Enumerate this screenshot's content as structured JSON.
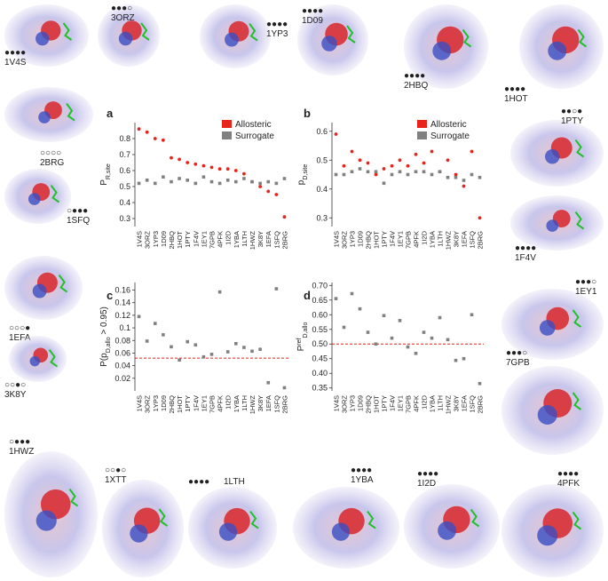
{
  "chart_data": [
    {
      "type": "scatter",
      "panel": "a",
      "ylabel": [
        {
          "text": "P"
        },
        {
          "text": "R,site",
          "sub": true
        }
      ],
      "categories": [
        "1V4S",
        "3ORZ",
        "1YP3",
        "1D09",
        "2HBQ",
        "1HOT",
        "1PTY",
        "1F4V",
        "1EY1",
        "7GPB",
        "4PFK",
        "1I2D",
        "1YBA",
        "1LTH",
        "1HWZ",
        "3K8Y",
        "1EFA",
        "1SFQ",
        "2BRG"
      ],
      "series": [
        {
          "name": "Allosteric",
          "color": "#e8231c",
          "values": [
            0.86,
            0.84,
            0.8,
            0.79,
            0.68,
            0.67,
            0.65,
            0.64,
            0.63,
            0.62,
            0.61,
            0.61,
            0.6,
            0.58,
            0.53,
            0.5,
            0.47,
            0.45,
            0.31
          ]
        },
        {
          "name": "Surrogate",
          "color": "#808080",
          "values": [
            0.52,
            0.54,
            0.52,
            0.56,
            0.53,
            0.55,
            0.54,
            0.52,
            0.56,
            0.53,
            0.52,
            0.54,
            0.53,
            0.55,
            0.53,
            0.52,
            0.53,
            0.52,
            0.55
          ]
        }
      ],
      "ylim": [
        0.25,
        0.9
      ],
      "yticks": [
        0.3,
        0.4,
        0.5,
        0.6,
        0.7,
        0.8
      ]
    },
    {
      "type": "scatter",
      "panel": "b",
      "ylabel": [
        {
          "text": "p"
        },
        {
          "text": "D,site",
          "sub": true
        }
      ],
      "categories": [
        "1V4S",
        "3ORZ",
        "1YP3",
        "1D09",
        "2HBQ",
        "1HOT",
        "1PTY",
        "1F4V",
        "1EY1",
        "7GPB",
        "4PFK",
        "1I2D",
        "1YBA",
        "1LTH",
        "1HWZ",
        "3K8Y",
        "1EFA",
        "1SFQ",
        "2BRG"
      ],
      "series": [
        {
          "name": "Allosteric",
          "color": "#e8231c",
          "values": [
            0.59,
            0.48,
            0.53,
            0.5,
            0.49,
            0.45,
            0.47,
            0.48,
            0.5,
            0.48,
            0.52,
            0.49,
            0.53,
            0.46,
            0.5,
            0.45,
            0.41,
            0.53,
            0.3
          ]
        },
        {
          "name": "Surrogate",
          "color": "#808080",
          "values": [
            0.45,
            0.45,
            0.46,
            0.47,
            0.46,
            0.46,
            0.42,
            0.45,
            0.46,
            0.45,
            0.46,
            0.46,
            0.45,
            0.46,
            0.44,
            0.44,
            0.43,
            0.45,
            0.44
          ]
        }
      ],
      "ylim": [
        0.27,
        0.63
      ],
      "yticks": [
        0.3,
        0.4,
        0.5,
        0.6
      ]
    },
    {
      "type": "scatter",
      "panel": "c",
      "ylabel": [
        {
          "text": "P(p"
        },
        {
          "text": "D,allo",
          "sub": true
        },
        {
          "text": " > 0.95)"
        }
      ],
      "categories": [
        "1V4S",
        "3ORZ",
        "1YP3",
        "1D09",
        "2HBQ",
        "1HOT",
        "1PTY",
        "1F4V",
        "1EY1",
        "7GPB",
        "4PFK",
        "1I2D",
        "1YBA",
        "1LTH",
        "1HWZ",
        "3K8Y",
        "1EFA",
        "1SFQ",
        "2BRG"
      ],
      "values": [
        0.118,
        0.079,
        0.107,
        0.089,
        0.07,
        0.049,
        0.078,
        0.073,
        0.054,
        0.058,
        0.157,
        0.062,
        0.075,
        0.069,
        0.063,
        0.066,
        0.013,
        0.162,
        0.005
      ],
      "color": "#808080",
      "threshold": 0.052,
      "threshold_color": "#e8231c",
      "ylim": [
        0.0,
        0.172
      ],
      "yticks": [
        0.02,
        0.04,
        0.06,
        0.08,
        0.1,
        0.12,
        0.14,
        0.16
      ]
    },
    {
      "type": "scatter",
      "panel": "d",
      "ylabel": [
        {
          "text": "P"
        },
        {
          "text": "ref",
          "sup": true
        },
        {
          "text": "D,allo",
          "sub": true
        }
      ],
      "categories": [
        "1V4S",
        "3ORZ",
        "1YP3",
        "1D09",
        "2HBQ",
        "1HOT",
        "1PTY",
        "1F4V",
        "1EY1",
        "7GPB",
        "4PFK",
        "1I2D",
        "1YBA",
        "1LTH",
        "1HWZ",
        "3K8Y",
        "1EFA",
        "1SFQ",
        "2BRG"
      ],
      "values": [
        0.655,
        0.557,
        0.672,
        0.62,
        0.54,
        0.5,
        0.597,
        0.52,
        0.58,
        0.49,
        0.468,
        0.54,
        0.52,
        0.59,
        0.515,
        0.444,
        0.45,
        0.6,
        0.365
      ],
      "color": "#808080",
      "threshold": 0.5,
      "threshold_color": "#e8231c",
      "ylim": [
        0.34,
        0.71
      ],
      "yticks": [
        0.35,
        {
          "value": 0.4,
          "label": "0.40"
        },
        0.45,
        {
          "value": 0.5,
          "label": "0.50"
        },
        0.55,
        {
          "value": 0.6,
          "label": "0.60"
        },
        0.65,
        {
          "value": 0.7,
          "label": "0.70"
        }
      ]
    }
  ],
  "proteins": [
    {
      "label": "1V4S",
      "dots": "●●●●"
    },
    {
      "label": "3ORZ",
      "dots": "●●●○"
    },
    {
      "label": "1YP3",
      "dots": "●●●●"
    },
    {
      "label": "1D09",
      "dots": "●●●●"
    },
    {
      "label": "2HBQ",
      "dots": "●●●●"
    },
    {
      "label": "1HOT",
      "dots": "●●●●"
    },
    {
      "label": "2BRG",
      "dots": "○○○○"
    },
    {
      "label": "1PTY",
      "dots": "●●○●"
    },
    {
      "label": "1SFQ",
      "dots": "○●●●"
    },
    {
      "label": "1F4V",
      "dots": "●●●●"
    },
    {
      "label": "1EFA",
      "dots": "○○○●"
    },
    {
      "label": "1EY1",
      "dots": "●●●○"
    },
    {
      "label": "3K8Y",
      "dots": "○○●○"
    },
    {
      "label": "7GPB",
      "dots": "●●●○"
    },
    {
      "label": "1HWZ",
      "dots": "○●●●"
    },
    {
      "label": "1XTT",
      "dots": "○○●○"
    },
    {
      "label": "1LTH",
      "dots": "●●●●"
    },
    {
      "label": "1YBA",
      "dots": "●●●●"
    },
    {
      "label": "1I2D",
      "dots": "●●●●"
    },
    {
      "label": "4PFK",
      "dots": "●●●●"
    }
  ]
}
